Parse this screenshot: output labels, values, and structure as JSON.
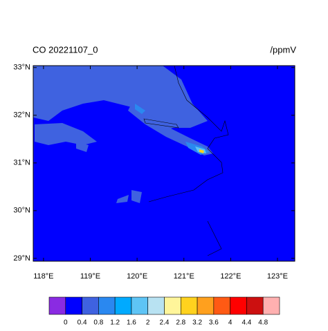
{
  "chart_data": {
    "type": "contour-map",
    "title": "CO 20221107_0",
    "units": "/ppmV",
    "xlim": [
      117.78,
      123.37
    ],
    "ylim": [
      28.94,
      33.04
    ],
    "xticks": [
      {
        "value": 118,
        "label": "118°E"
      },
      {
        "value": 119,
        "label": "119°E"
      },
      {
        "value": 120,
        "label": "120°E"
      },
      {
        "value": 121,
        "label": "121°E"
      },
      {
        "value": 122,
        "label": "122°E"
      },
      {
        "value": 123,
        "label": "123°E"
      }
    ],
    "yticks": [
      {
        "value": 29,
        "label": "29°N"
      },
      {
        "value": 30,
        "label": "30°N"
      },
      {
        "value": 31,
        "label": "31°N"
      },
      {
        "value": 32,
        "label": "32°N"
      },
      {
        "value": 33,
        "label": "33°N"
      }
    ],
    "colorbar": {
      "levels": [
        0,
        0.4,
        0.8,
        1.2,
        1.6,
        2,
        2.4,
        2.8,
        3.2,
        3.6,
        4,
        4.4,
        4.8
      ],
      "colors": [
        "#8a2be2",
        "#0000ff",
        "#3f62e0",
        "#2a88f0",
        "#00aaff",
        "#5ec4f5",
        "#b8e2f2",
        "#fff59a",
        "#ffd21e",
        "#ffa01e",
        "#ff5a14",
        "#ff0000",
        "#cc1010",
        "#ffb0b0"
      ]
    }
  }
}
